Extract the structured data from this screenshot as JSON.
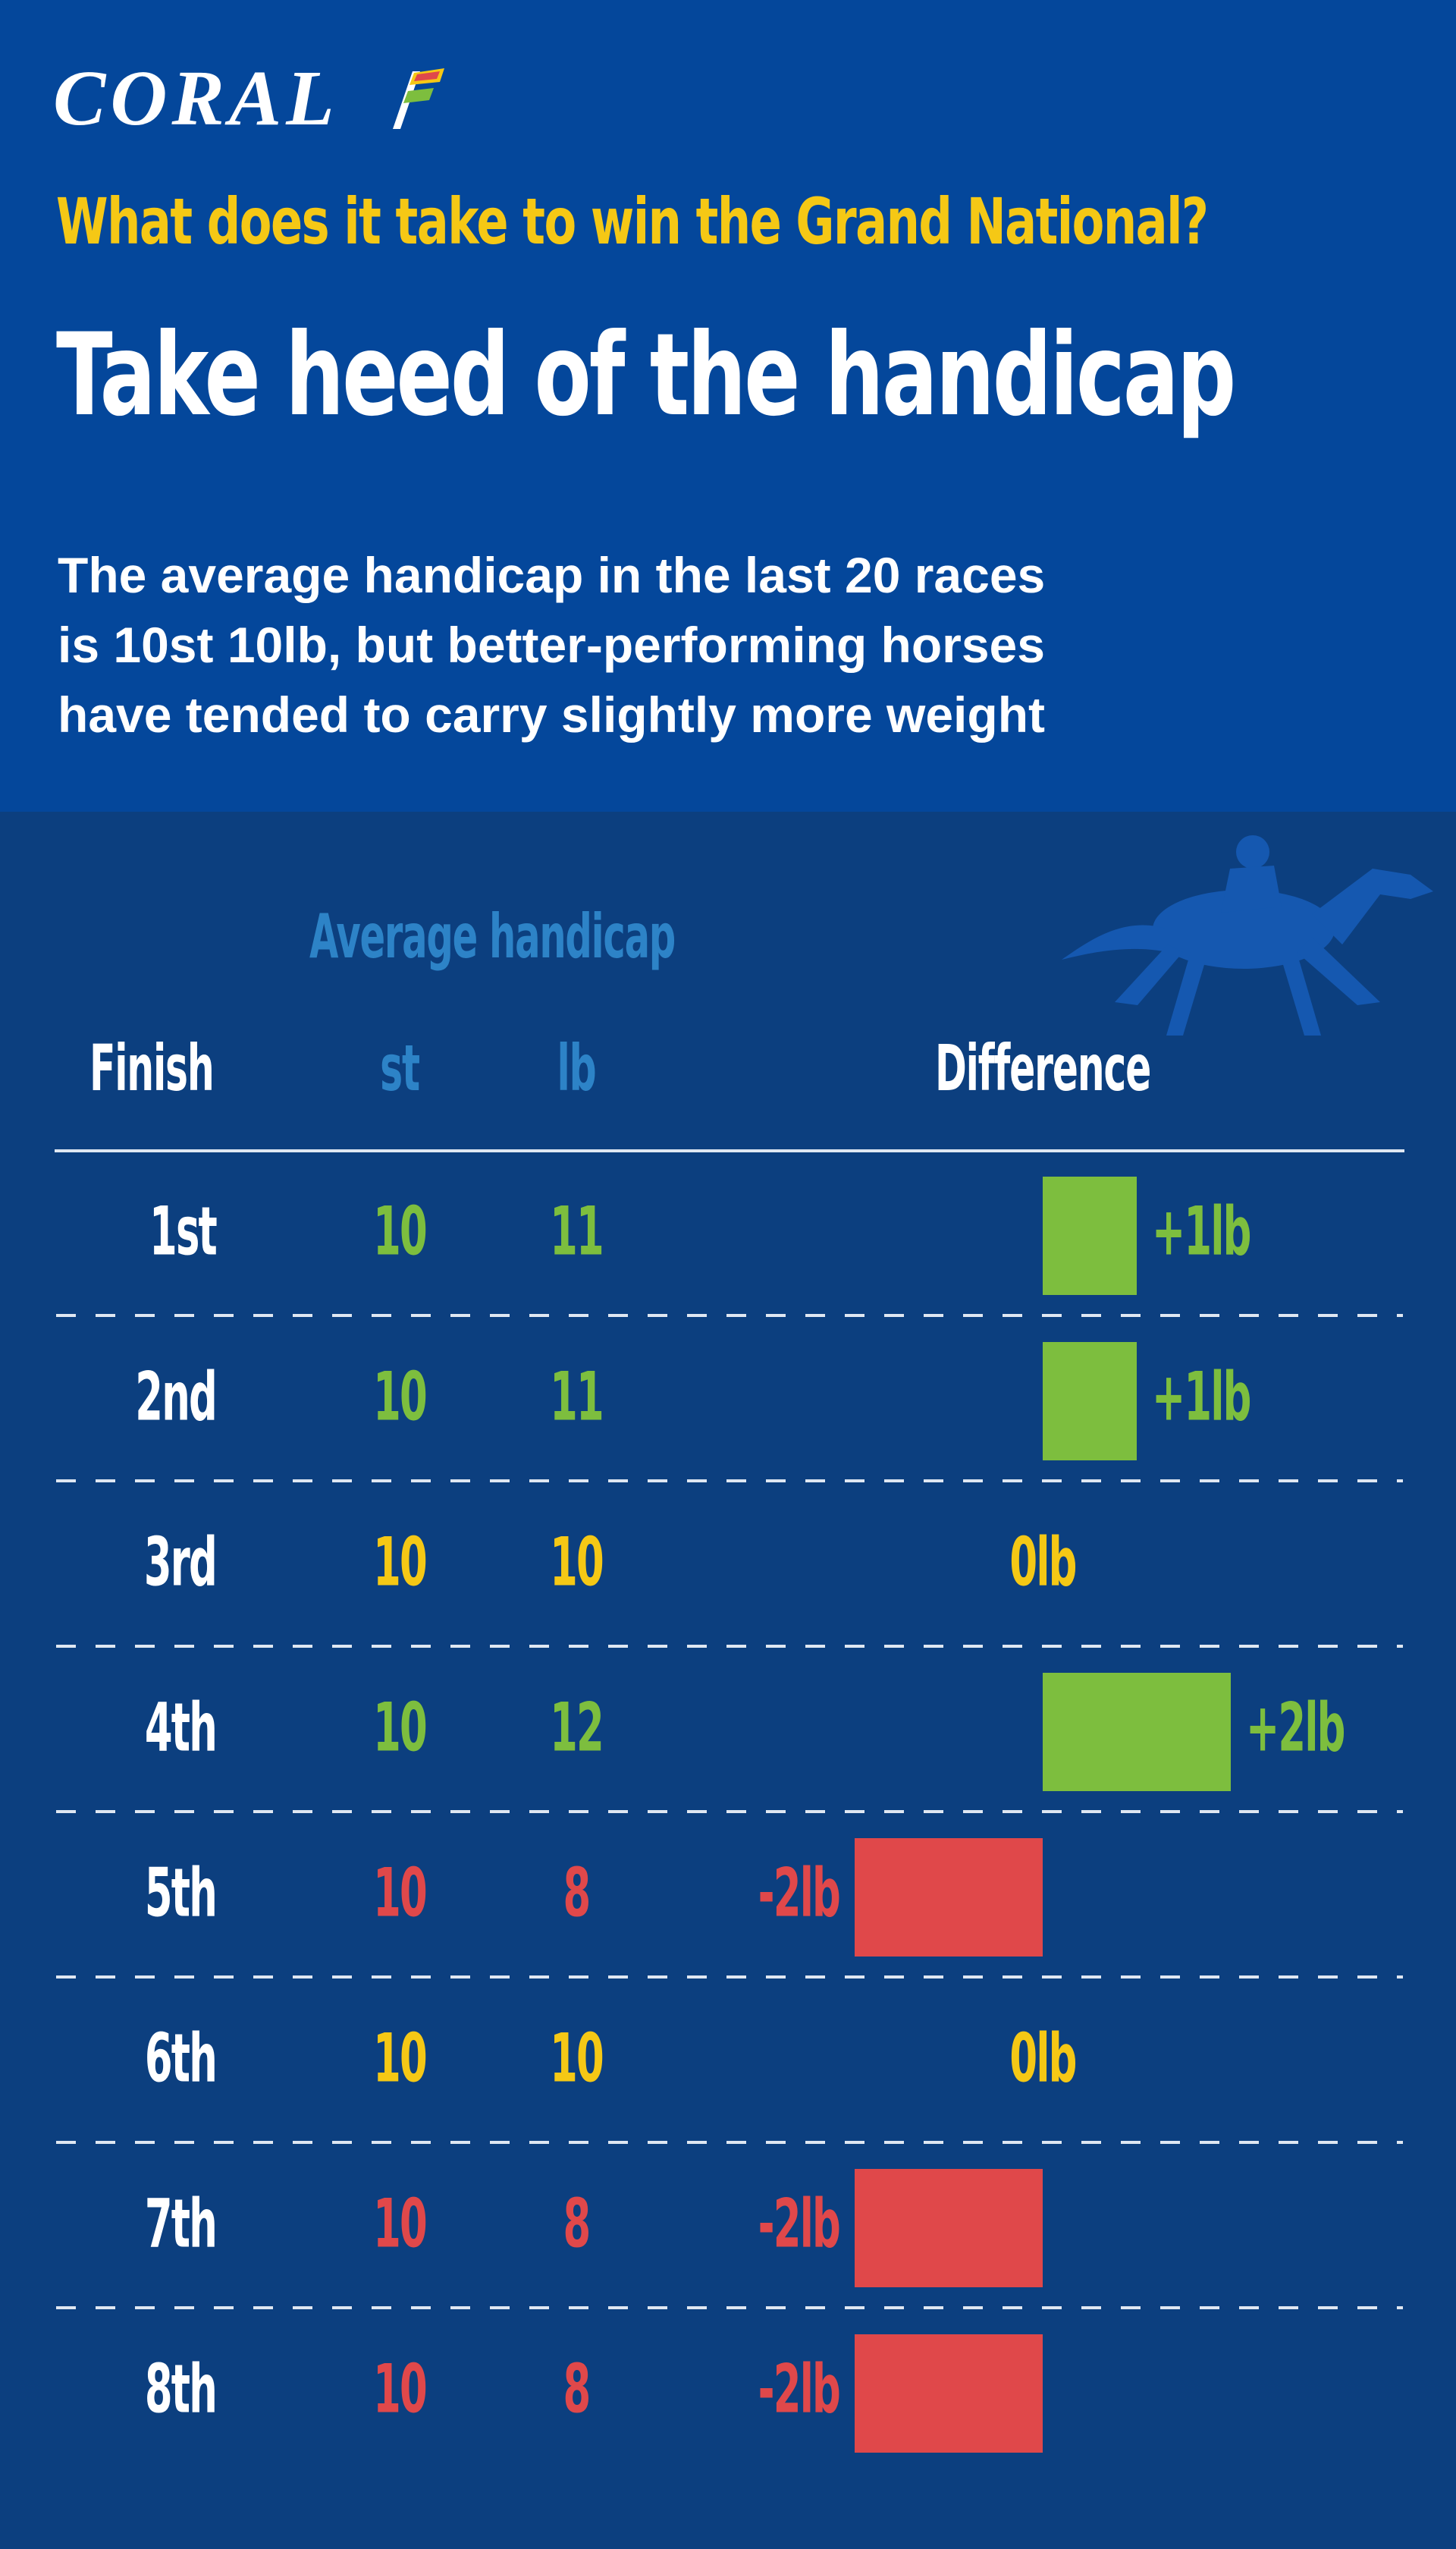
{
  "brand": {
    "logo_text": "CORAL"
  },
  "header": {
    "kicker": "What does it take to win the Grand National?",
    "headline": "Take heed of the handicap",
    "subtitle": [
      "The average handicap in the last 20 races",
      "is 10st 10lb, but better-performing horses",
      "have tended to carry slightly more weight"
    ]
  },
  "table": {
    "group_label": "Average handicap",
    "col_finish": "Finish",
    "col_st": "st",
    "col_lb": "lb",
    "col_diff": "Difference"
  },
  "colors": {
    "positive": "#7dbe3e",
    "neutral": "#f5c815",
    "negative": "#e0484a",
    "header_bg": "#04479b",
    "body_bg": "#0c3f7f",
    "accent_blue": "#2d83c7"
  },
  "chart_data": {
    "type": "bar",
    "average": {
      "st": 10,
      "lb": 10
    },
    "categories": [
      "1st",
      "2nd",
      "3rd",
      "4th",
      "5th",
      "6th",
      "7th",
      "8th"
    ],
    "st": [
      10,
      10,
      10,
      10,
      10,
      10,
      10,
      10
    ],
    "lb": [
      11,
      11,
      10,
      12,
      8,
      10,
      8,
      8
    ],
    "values": [
      1,
      1,
      0,
      2,
      -2,
      0,
      -2,
      -2
    ],
    "labels": [
      "+1lb",
      "+1lb",
      "0lb",
      "+2lb",
      "-2lb",
      "0lb",
      "-2lb",
      "-2lb"
    ]
  }
}
